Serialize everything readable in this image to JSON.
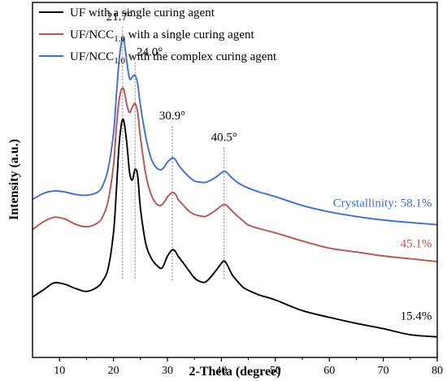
{
  "chart_data": {
    "type": "line",
    "xlabel": "2-Theta (degree)",
    "ylabel": "Intensity (a.u.)",
    "xlim": [
      5,
      80
    ],
    "xticks": [
      10,
      20,
      30,
      40,
      50,
      60,
      70,
      80
    ],
    "y_ticks_shown": false,
    "legend_position": "top-left",
    "legend": [
      {
        "prefix": "UF with a single curing agent",
        "sub": "",
        "suffix": ""
      },
      {
        "prefix": "UF/NCC",
        "sub": "1.0",
        "suffix": " with a single curing agent"
      },
      {
        "prefix": "UF/NCC",
        "sub": "1.0",
        "suffix": " with the complex curing agent"
      }
    ],
    "series": [
      {
        "name": "UF with a single curing agent",
        "color": "#000000",
        "x": [
          5,
          7,
          9,
          11,
          13,
          15,
          17,
          18,
          19,
          20,
          20.5,
          21,
          21.4,
          21.7,
          22,
          22.5,
          23,
          23.5,
          24,
          24.5,
          25,
          26,
          27,
          28,
          29,
          30,
          30.9,
          31.5,
          32,
          33,
          34,
          35,
          36,
          37,
          38,
          39,
          40,
          40.5,
          41,
          42,
          43,
          44,
          45,
          47,
          50,
          55,
          60,
          65,
          70,
          75,
          80
        ],
        "y": [
          17,
          19,
          21,
          20.6,
          19.4,
          18.6,
          19.8,
          21.6,
          25,
          35,
          46,
          59,
          65,
          67,
          66,
          60,
          52,
          50,
          53,
          51,
          42,
          32,
          28,
          26,
          25.2,
          28.5,
          30.3,
          29.8,
          28.5,
          26.5,
          24.4,
          22.4,
          21.4,
          21.2,
          22.6,
          24.5,
          26.5,
          27.2,
          26.3,
          23.3,
          21.4,
          19.8,
          18.9,
          17.6,
          16.2,
          13.2,
          11.3,
          9.6,
          8.1,
          6.4,
          5.8
        ]
      },
      {
        "name": "UF/NCC1.0 with a single curing agent",
        "color": "#c0504d",
        "x": [
          5,
          7,
          9,
          11,
          13,
          15,
          17,
          18,
          19,
          20,
          20.5,
          21,
          21.4,
          21.7,
          22,
          22.5,
          23,
          23.5,
          24,
          24.5,
          25,
          26,
          27,
          28,
          29,
          30,
          30.9,
          31.5,
          32,
          33,
          34,
          35,
          36,
          37,
          38,
          39,
          40,
          40.5,
          41,
          42,
          43,
          44,
          45,
          47,
          50,
          55,
          60,
          65,
          70,
          75,
          80
        ],
        "y": [
          36,
          38.2,
          39.5,
          39,
          37.5,
          36.8,
          37.8,
          39.6,
          44,
          54,
          64,
          72,
          75.2,
          75.9,
          75,
          71,
          69,
          70.5,
          71.5,
          69,
          62,
          51.5,
          45.8,
          43.2,
          43,
          45.2,
          46.4,
          46,
          44.5,
          42.8,
          41.2,
          40.3,
          39.9,
          39.7,
          40.5,
          41.5,
          42.7,
          43.1,
          42.8,
          41.2,
          39.8,
          38.5,
          37.3,
          36.3,
          35.1,
          32.8,
          30.8,
          29.7,
          28.6,
          27.8,
          27
        ]
      },
      {
        "name": "UF/NCC1.0 with the complex curing agent",
        "color": "#3a6fe0",
        "x": [
          5,
          7,
          9,
          11,
          13,
          15,
          17,
          18,
          19,
          20,
          20.5,
          21,
          21.4,
          21.7,
          22,
          22.5,
          23,
          23.5,
          24,
          24.5,
          25,
          26,
          27,
          28,
          29,
          30,
          30.9,
          31.5,
          32,
          33,
          34,
          35,
          36,
          37,
          38,
          39,
          40,
          40.5,
          41,
          42,
          43,
          44,
          45,
          47,
          50,
          55,
          60,
          65,
          70,
          75,
          80
        ],
        "y": [
          44.5,
          46.2,
          46.9,
          46.6,
          45.9,
          45.7,
          46.5,
          48.4,
          53,
          63,
          73,
          83,
          88,
          89.8,
          89,
          83,
          78.5,
          79,
          79.5,
          77,
          71,
          62,
          56,
          53.4,
          53,
          55,
          56.2,
          55.7,
          54.3,
          52.4,
          50.9,
          49.7,
          49.4,
          49.3,
          49.9,
          50.8,
          52,
          52.4,
          52.1,
          50.5,
          49.3,
          48.4,
          47.7,
          46.6,
          45.3,
          42.8,
          41,
          39.7,
          38.7,
          38,
          37.4
        ]
      }
    ],
    "peaks": [
      {
        "label": "21.7°",
        "x": 21.7,
        "label_y": 95
      },
      {
        "label": "24.0°",
        "x": 24.0,
        "label_y": 85
      },
      {
        "label": "30.9°",
        "x": 30.9,
        "label_y": 67
      },
      {
        "label": "40.5°",
        "x": 40.5,
        "label_y": 61
      }
    ],
    "annotations": [
      {
        "text": "Crystallinity: 58.1%",
        "x": 79,
        "y": 42.5,
        "color": "#3a6fe0"
      },
      {
        "text": "45.1%",
        "x": 79,
        "y": 31.0,
        "color": "#c0504d"
      },
      {
        "text": "15.4%",
        "x": 79,
        "y": 10.6,
        "color": "#000000"
      }
    ]
  }
}
